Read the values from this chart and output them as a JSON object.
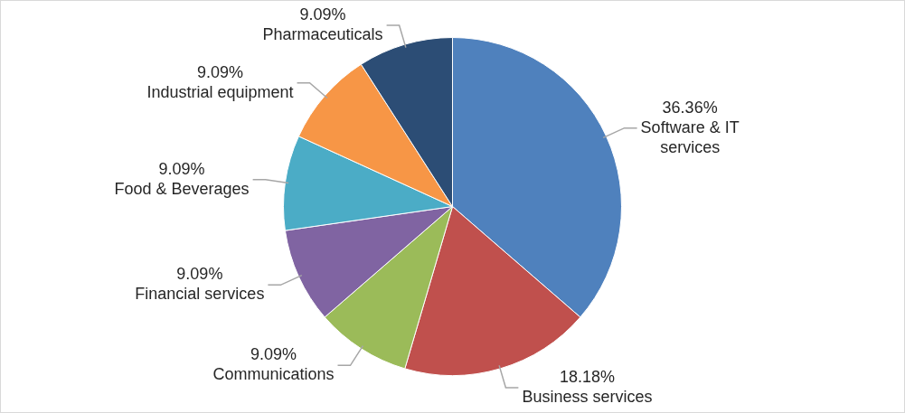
{
  "chart_data": {
    "type": "pie",
    "categories": [
      "Software & IT services",
      "Business services",
      "Communications",
      "Financial services",
      "Food & Beverages",
      "Industrial equipment",
      "Pharmaceuticals"
    ],
    "values": [
      36.36,
      18.18,
      9.09,
      9.09,
      9.09,
      9.09,
      9.09
    ],
    "value_labels": [
      "36.36%",
      "18.18%",
      "9.09%",
      "9.09%",
      "9.09%",
      "9.09%",
      "9.09%"
    ],
    "colors": [
      "#4f81bd",
      "#c0504d",
      "#9bbb59",
      "#8064a2",
      "#4bacc6",
      "#f79646",
      "#2c4d75"
    ],
    "legend": false
  }
}
